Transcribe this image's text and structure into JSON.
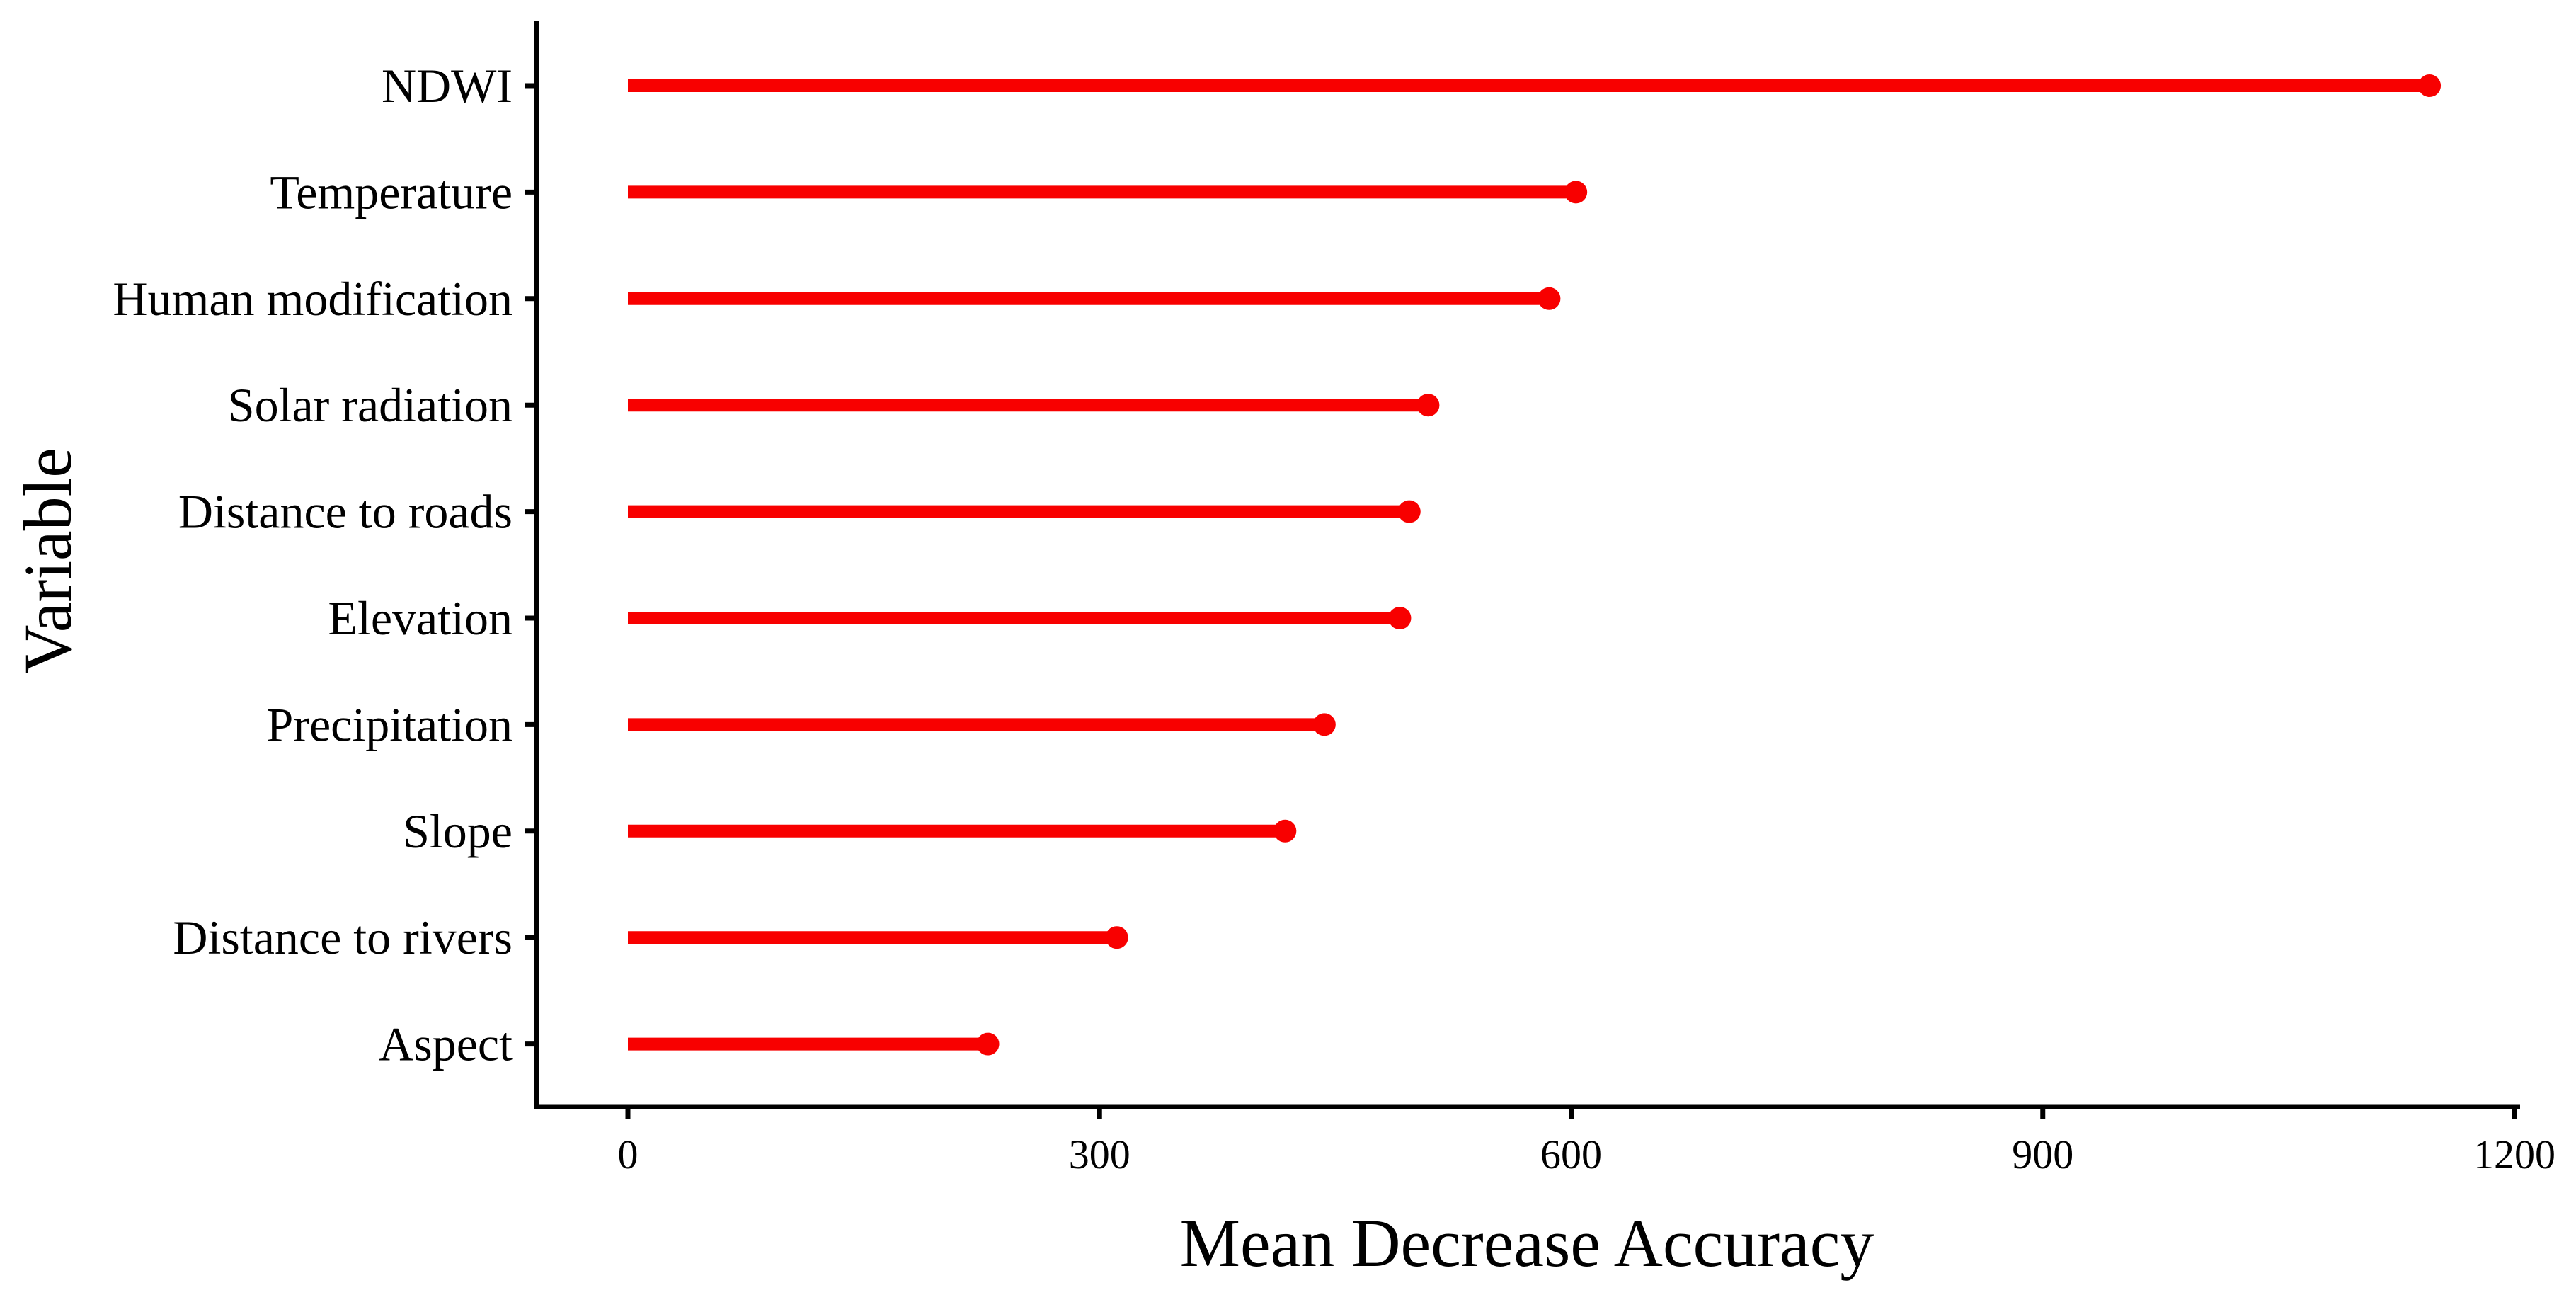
{
  "chart_data": {
    "type": "bar",
    "variant": "lollipop",
    "orientation": "horizontal",
    "title": "",
    "xlabel": "Mean Decrease Accuracy",
    "ylabel": "Variable",
    "categories": [
      "NDWI",
      "Temperature",
      "Human modification",
      "Solar radiation",
      "Distance to roads",
      "Elevation",
      "Precipitation",
      "Slope",
      "Distance to rivers",
      "Aspect"
    ],
    "values": [
      1146,
      603,
      586,
      509,
      497,
      491,
      443,
      418,
      311,
      229
    ],
    "xlim": [
      0,
      1200
    ],
    "xticks": [
      0,
      300,
      600,
      900,
      1200
    ],
    "grid": "off",
    "legend": "none",
    "colors": {
      "lollipop": "#F80000",
      "axis": "#000000",
      "text": "#000000"
    }
  }
}
